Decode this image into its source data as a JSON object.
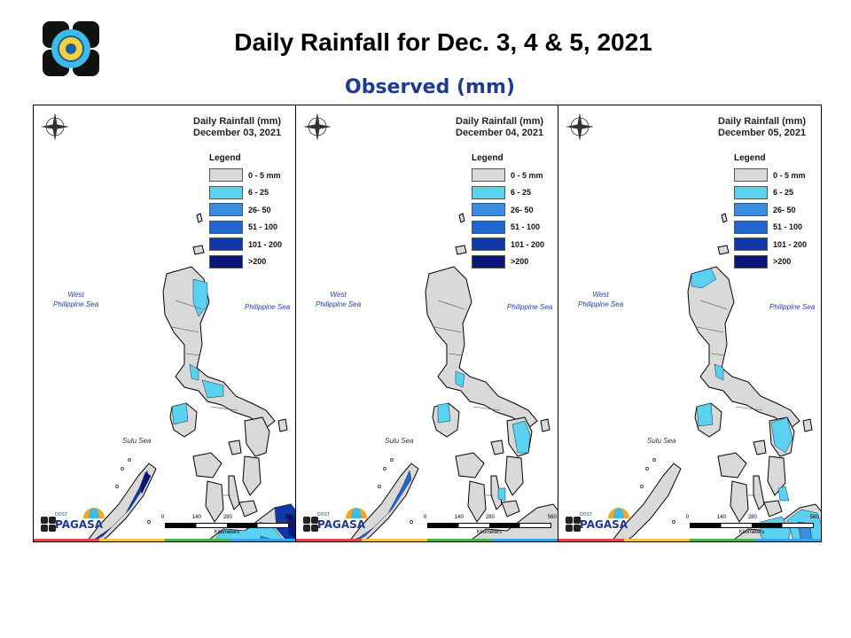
{
  "title": "Daily Rainfall for Dec. 3, 4 & 5, 2021",
  "subtitle": "Observed (mm)",
  "legend": {
    "title": "Legend",
    "classes": [
      {
        "label": "0 - 5 mm",
        "color": "#d9d9d9"
      },
      {
        "label": "6 - 25",
        "color": "#5bd1f0"
      },
      {
        "label": "26- 50",
        "color": "#3a8ce0"
      },
      {
        "label": "51 - 100",
        "color": "#2065d0"
      },
      {
        "label": "101 - 200",
        "color": "#1237a8"
      },
      {
        "label": ">200",
        "color": "#0b167a"
      }
    ]
  },
  "panels": [
    {
      "title_line1": "Daily Rainfall (mm)",
      "title_line2": "December 03, 2021"
    },
    {
      "title_line1": "Daily Rainfall (mm)",
      "title_line2": "December 04, 2021"
    },
    {
      "title_line1": "Daily Rainfall (mm)",
      "title_line2": "December 05, 2021"
    }
  ],
  "labels": {
    "west_sea_1": "West",
    "west_sea_2": "Philippine Sea",
    "philippine_sea": "Philippine Sea",
    "sulu_sea": "Sulu Sea"
  },
  "scale": {
    "ticks": [
      "0",
      "140",
      "280",
      "560"
    ],
    "unit": "Kilometers"
  },
  "brand": {
    "name": "PAGASA",
    "small": "DOST"
  },
  "colors": {
    "subtitle": "#1f3a93",
    "land": "#d9d9d9"
  }
}
